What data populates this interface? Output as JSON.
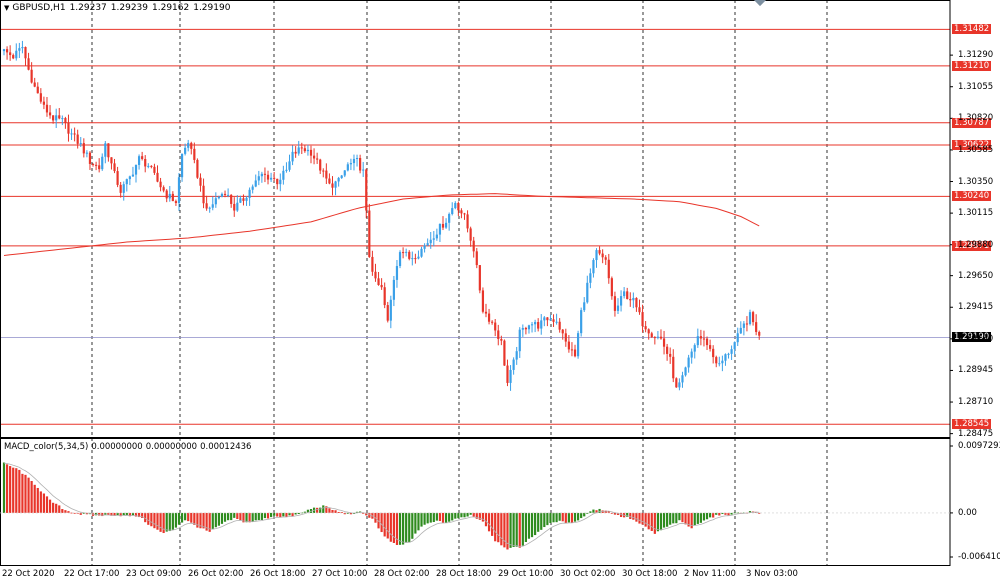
{
  "symbol": "GBPUSD,H1",
  "ohlc": [
    "1.29237",
    "1.29239",
    "1.29162",
    "1.29190"
  ],
  "colors": {
    "up": "#3aa0e8",
    "down": "#e8352a",
    "ma": "#e8352a",
    "level": "#e8352a",
    "current": "#8c8cc8",
    "macd_up": "#2e8b1e",
    "macd_down": "#e8352a"
  },
  "chart_data": [
    {
      "type": "candlestick",
      "title": "GBPUSD,H1",
      "ylim": [
        1.2845,
        1.317
      ],
      "y_ticks": [
        "1.31290",
        "1.31055",
        "1.30820",
        "1.30585",
        "1.30350",
        "1.30115",
        "1.29880",
        "1.29650",
        "1.29415",
        "1.29180",
        "1.28945",
        "1.28710",
        "1.28475"
      ],
      "x_ticks": [
        "22 Oct 2020",
        "22 Oct 17:00",
        "23 Oct 09:00",
        "26 Oct 02:00",
        "26 Oct 18:00",
        "27 Oct 10:00",
        "28 Oct 02:00",
        "28 Oct 18:00",
        "29 Oct 10:00",
        "30 Oct 02:00",
        "30 Oct 18:00",
        "2 Nov 11:00",
        "3 Nov 03:00"
      ],
      "levels": [
        "1.31482",
        "1.31210",
        "1.30787",
        "1.30622",
        "1.30240",
        "1.29871",
        "1.28545"
      ],
      "current_price": "1.29190",
      "anchors": [
        [
          0,
          1.3132
        ],
        [
          3,
          1.3128
        ],
        [
          6,
          1.3135
        ],
        [
          8,
          1.3118
        ],
        [
          10,
          1.3105
        ],
        [
          13,
          1.309
        ],
        [
          16,
          1.3082
        ],
        [
          19,
          1.308
        ],
        [
          22,
          1.307
        ],
        [
          25,
          1.3062
        ],
        [
          28,
          1.305
        ],
        [
          31,
          1.3045
        ],
        [
          33,
          1.3063
        ],
        [
          36,
          1.304
        ],
        [
          38,
          1.3028
        ],
        [
          41,
          1.3038
        ],
        [
          44,
          1.3052
        ],
        [
          47,
          1.3047
        ],
        [
          50,
          1.3035
        ],
        [
          53,
          1.3025
        ],
        [
          56,
          1.302
        ],
        [
          58,
          1.3055
        ],
        [
          60,
          1.3065
        ],
        [
          63,
          1.304
        ],
        [
          66,
          1.3012
        ],
        [
          69,
          1.3022
        ],
        [
          72,
          1.3028
        ],
        [
          75,
          1.3015
        ],
        [
          78,
          1.3022
        ],
        [
          81,
          1.3032
        ],
        [
          84,
          1.304
        ],
        [
          87,
          1.3038
        ],
        [
          89,
          1.3035
        ],
        [
          92,
          1.3043
        ],
        [
          94,
          1.3055
        ],
        [
          97,
          1.306
        ],
        [
          100,
          1.3057
        ],
        [
          103,
          1.3045
        ],
        [
          106,
          1.3032
        ],
        [
          109,
          1.3035
        ],
        [
          112,
          1.3047
        ],
        [
          115,
          1.305
        ],
        [
          117,
          1.3042
        ],
        [
          119,
          1.298
        ],
        [
          121,
          1.296
        ],
        [
          123,
          1.2955
        ],
        [
          125,
          1.293
        ],
        [
          127,
          1.2963
        ],
        [
          129,
          1.2985
        ],
        [
          132,
          1.2978
        ],
        [
          135,
          1.2982
        ],
        [
          138,
          1.299
        ],
        [
          141,
          1.2998
        ],
        [
          144,
          1.3006
        ],
        [
          147,
          1.302
        ],
        [
          150,
          1.3008
        ],
        [
          153,
          1.2985
        ],
        [
          156,
          1.294
        ],
        [
          159,
          1.293
        ],
        [
          162,
          1.2915
        ],
        [
          164,
          1.2885
        ],
        [
          166,
          1.29
        ],
        [
          168,
          1.2922
        ],
        [
          171,
          1.293
        ],
        [
          174,
          1.2928
        ],
        [
          177,
          1.2933
        ],
        [
          180,
          1.2932
        ],
        [
          183,
          1.2915
        ],
        [
          186,
          1.2905
        ],
        [
          188,
          1.2938
        ],
        [
          190,
          1.2958
        ],
        [
          193,
          1.2982
        ],
        [
          196,
          1.2975
        ],
        [
          199,
          1.2938
        ],
        [
          202,
          1.2952
        ],
        [
          205,
          1.2946
        ],
        [
          208,
          1.293
        ],
        [
          211,
          1.2922
        ],
        [
          214,
          1.2918
        ],
        [
          217,
          1.2902
        ],
        [
          219,
          1.288
        ],
        [
          221,
          1.2888
        ],
        [
          223,
          1.2902
        ],
        [
          226,
          1.292
        ],
        [
          229,
          1.2915
        ],
        [
          231,
          1.2905
        ],
        [
          233,
          1.2898
        ],
        [
          235,
          1.2905
        ],
        [
          238,
          1.2915
        ],
        [
          241,
          1.2928
        ],
        [
          243,
          1.2935
        ],
        [
          245,
          1.2925
        ],
        [
          246,
          1.2919
        ]
      ],
      "ma_points": [
        [
          0,
          1.298
        ],
        [
          20,
          1.2985
        ],
        [
          40,
          1.299
        ],
        [
          60,
          1.2993
        ],
        [
          80,
          1.2998
        ],
        [
          100,
          1.3005
        ],
        [
          115,
          1.3015
        ],
        [
          130,
          1.3022
        ],
        [
          145,
          1.3025
        ],
        [
          160,
          1.3026
        ],
        [
          175,
          1.3024
        ],
        [
          190,
          1.3023
        ],
        [
          205,
          1.3022
        ],
        [
          220,
          1.302
        ],
        [
          232,
          1.3015
        ],
        [
          240,
          1.3009
        ],
        [
          246,
          1.3002
        ]
      ]
    },
    {
      "type": "bar",
      "title": "MACD_color(5,34,5)",
      "values_text": [
        "0.00000000",
        "0.00000000",
        "0.00012436"
      ],
      "ylim": [
        -0.00641,
        0.0097293
      ],
      "y_ticks": [
        "0.0097293",
        "0.00",
        "-0.006410"
      ],
      "anchors": [
        [
          0,
          0.0072
        ],
        [
          5,
          0.0062
        ],
        [
          10,
          0.0042
        ],
        [
          15,
          0.0018
        ],
        [
          20,
          0.0004
        ],
        [
          25,
          -0.0002
        ],
        [
          30,
          -0.0004
        ],
        [
          35,
          -0.0003
        ],
        [
          40,
          -0.0004
        ],
        [
          44,
          -0.0005
        ],
        [
          48,
          -0.002
        ],
        [
          52,
          -0.003
        ],
        [
          55,
          -0.0024
        ],
        [
          59,
          -0.001
        ],
        [
          63,
          -0.002
        ],
        [
          67,
          -0.0028
        ],
        [
          71,
          -0.0016
        ],
        [
          75,
          -0.0008
        ],
        [
          79,
          -0.0014
        ],
        [
          84,
          -0.001
        ],
        [
          88,
          -0.0004
        ],
        [
          92,
          -0.0006
        ],
        [
          96,
          -0.0002
        ],
        [
          100,
          0.0006
        ],
        [
          104,
          0.001
        ],
        [
          108,
          0.0003
        ],
        [
          112,
          -0.0002
        ],
        [
          116,
          0.0001
        ],
        [
          120,
          -0.0008
        ],
        [
          124,
          -0.0035
        ],
        [
          128,
          -0.0048
        ],
        [
          132,
          -0.0043
        ],
        [
          136,
          -0.002
        ],
        [
          140,
          -0.0012
        ],
        [
          144,
          -0.0014
        ],
        [
          148,
          -0.0008
        ],
        [
          152,
          -0.0003
        ],
        [
          156,
          -0.0012
        ],
        [
          160,
          -0.004
        ],
        [
          164,
          -0.0052
        ],
        [
          168,
          -0.005
        ],
        [
          172,
          -0.0035
        ],
        [
          176,
          -0.002
        ],
        [
          180,
          -0.0012
        ],
        [
          184,
          -0.0015
        ],
        [
          188,
          -0.0008
        ],
        [
          191,
          0.0003
        ],
        [
          194,
          0.0006
        ],
        [
          197,
          0.0002
        ],
        [
          200,
          -0.0004
        ],
        [
          204,
          -0.0008
        ],
        [
          208,
          -0.0018
        ],
        [
          212,
          -0.003
        ],
        [
          216,
          -0.002
        ],
        [
          220,
          -0.0012
        ],
        [
          224,
          -0.0022
        ],
        [
          228,
          -0.001
        ],
        [
          232,
          -0.0004
        ],
        [
          236,
          -0.0002
        ],
        [
          240,
          0.0001
        ],
        [
          244,
          0.0002
        ],
        [
          246,
          0.0001
        ]
      ]
    }
  ]
}
